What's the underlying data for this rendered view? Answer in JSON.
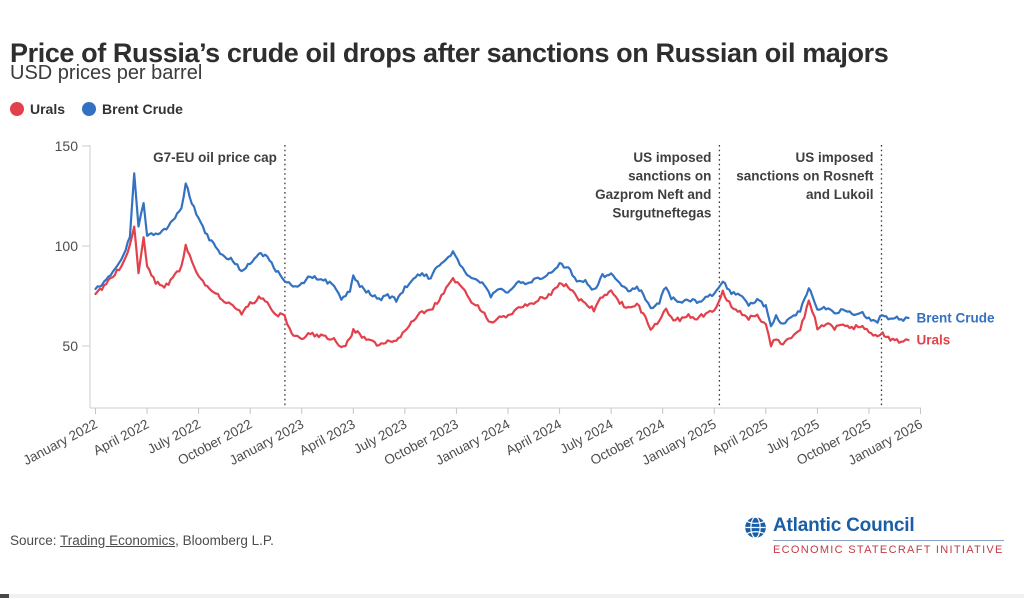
{
  "header": {
    "title": "Price of Russia’s crude oil drops after sanctions on Russian oil majors",
    "subtitle": "USD prices per barrel"
  },
  "legend": {
    "items": [
      {
        "label": "Urals",
        "color": "#e2414c"
      },
      {
        "label": "Brent Crude",
        "color": "#3372c2"
      }
    ]
  },
  "source": {
    "prefix": "Source: ",
    "link": "Trading Economics",
    "suffix": ", Bloomberg L.P."
  },
  "logo": {
    "org": "Atlantic Council",
    "program": "ECONOMIC STATECRAFT INITIATIVE",
    "org_color": "#1b5ea6",
    "program_color": "#c23b43"
  },
  "chart_data": {
    "type": "line",
    "title": "Price of Russia’s crude oil drops after sanctions on Russian oil majors",
    "ylabel": "USD prices per barrel",
    "grid": false,
    "legend_position": "top-left",
    "x_axis": {
      "unit": "months since January 2022",
      "tick_t": [
        0,
        3,
        6,
        9,
        12,
        15,
        18,
        21,
        24,
        27,
        30,
        33,
        36,
        39,
        42,
        45,
        48
      ],
      "tick_labels": [
        "January 2022",
        "April 2022",
        "July 2022",
        "October 2022",
        "January 2023",
        "April 2023",
        "July 2023",
        "October 2023",
        "January 2024",
        "April 2024",
        "July 2024",
        "October 2024",
        "January 2025",
        "April 2025",
        "July 2025",
        "October 2025",
        "January 2026"
      ]
    },
    "y_axis": {
      "ticks": [
        50,
        100,
        150
      ],
      "range": [
        19,
        152
      ]
    },
    "annotations": [
      {
        "name": "g7-eu-oil-price-cap",
        "t": 11.02,
        "date_hint": "December 2022",
        "lines": [
          "G7-EU oil price cap"
        ]
      },
      {
        "name": "us-sanctions-gazprom-neft-surgutneftegas",
        "t": 36.3,
        "date_hint": "January 2025",
        "lines": [
          "US imposed",
          "sanctions on",
          "Gazprom Neft and",
          "Surgutneftegas"
        ]
      },
      {
        "name": "us-sanctions-rosneft-lukoil",
        "t": 45.73,
        "date_hint": "October 2025",
        "lines": [
          "US imposed",
          "sanctions on Rosneft",
          "and Lukoil"
        ]
      }
    ],
    "series": [
      {
        "name": "Urals",
        "end_label": "Urals",
        "color": "#e2414c",
        "points": [
          [
            0,
            76
          ],
          [
            0.5,
            80
          ],
          [
            1,
            85
          ],
          [
            1.5,
            90
          ],
          [
            2,
            100
          ],
          [
            2.25,
            110
          ],
          [
            2.5,
            86
          ],
          [
            2.8,
            104
          ],
          [
            3,
            90
          ],
          [
            3.5,
            82
          ],
          [
            4,
            79
          ],
          [
            4.5,
            84
          ],
          [
            5,
            89
          ],
          [
            5.25,
            100
          ],
          [
            5.6,
            93
          ],
          [
            6,
            85
          ],
          [
            6.5,
            80
          ],
          [
            7,
            77
          ],
          [
            7.5,
            72
          ],
          [
            8,
            70
          ],
          [
            8.5,
            66
          ],
          [
            9,
            71
          ],
          [
            9.5,
            74
          ],
          [
            10,
            72
          ],
          [
            10.5,
            66
          ],
          [
            11,
            65
          ],
          [
            11.3,
            58
          ],
          [
            11.5,
            55
          ],
          [
            12,
            54
          ],
          [
            12.5,
            56
          ],
          [
            13,
            55
          ],
          [
            13.5,
            54
          ],
          [
            14,
            53
          ],
          [
            14.3,
            49
          ],
          [
            14.8,
            53
          ],
          [
            15,
            58
          ],
          [
            15.5,
            55
          ],
          [
            16,
            53
          ],
          [
            16.5,
            50
          ],
          [
            17,
            53
          ],
          [
            17.5,
            52
          ],
          [
            18,
            58
          ],
          [
            18.5,
            63
          ],
          [
            19,
            67
          ],
          [
            19.5,
            68
          ],
          [
            20,
            73
          ],
          [
            20.8,
            84
          ],
          [
            21.2,
            80
          ],
          [
            21.5,
            77
          ],
          [
            22,
            71
          ],
          [
            22.5,
            68
          ],
          [
            23,
            61
          ],
          [
            23.5,
            64
          ],
          [
            24,
            65
          ],
          [
            24.5,
            69
          ],
          [
            25,
            70
          ],
          [
            25.5,
            72
          ],
          [
            26,
            74
          ],
          [
            26.5,
            76
          ],
          [
            27,
            81
          ],
          [
            27.5,
            80
          ],
          [
            28,
            74
          ],
          [
            28.5,
            72
          ],
          [
            29,
            68
          ],
          [
            29.5,
            75
          ],
          [
            30,
            78
          ],
          [
            30.5,
            72
          ],
          [
            31,
            69
          ],
          [
            31.5,
            71
          ],
          [
            32,
            64
          ],
          [
            32.3,
            59
          ],
          [
            32.8,
            62
          ],
          [
            33.2,
            69
          ],
          [
            33.5,
            64
          ],
          [
            34,
            63
          ],
          [
            34.5,
            65
          ],
          [
            35,
            64
          ],
          [
            35.5,
            66
          ],
          [
            36,
            68
          ],
          [
            36.5,
            77
          ],
          [
            37,
            70
          ],
          [
            37.5,
            67
          ],
          [
            38,
            64
          ],
          [
            38.5,
            65
          ],
          [
            39,
            61
          ],
          [
            39.3,
            50
          ],
          [
            39.6,
            54
          ],
          [
            40,
            51
          ],
          [
            40.5,
            54
          ],
          [
            41,
            58
          ],
          [
            41.5,
            72
          ],
          [
            41.7,
            68
          ],
          [
            42,
            59
          ],
          [
            42.5,
            61
          ],
          [
            43,
            59
          ],
          [
            43.5,
            61
          ],
          [
            44,
            59
          ],
          [
            44.5,
            60
          ],
          [
            45,
            57
          ],
          [
            45.5,
            54
          ],
          [
            45.8,
            57
          ],
          [
            46,
            54
          ],
          [
            46.5,
            53
          ],
          [
            47,
            52
          ],
          [
            47.3,
            53
          ]
        ]
      },
      {
        "name": "Brent Crude",
        "end_label": "Brent Crude",
        "color": "#3372c2",
        "points": [
          [
            0,
            78.5
          ],
          [
            0.5,
            82
          ],
          [
            1,
            87
          ],
          [
            1.5,
            93
          ],
          [
            2,
            104
          ],
          [
            2.25,
            137
          ],
          [
            2.5,
            109
          ],
          [
            2.8,
            121
          ],
          [
            3,
            106
          ],
          [
            3.5,
            106
          ],
          [
            4,
            108
          ],
          [
            4.5,
            113
          ],
          [
            5,
            119
          ],
          [
            5.25,
            131
          ],
          [
            5.6,
            122
          ],
          [
            6,
            113
          ],
          [
            6.5,
            105
          ],
          [
            7,
            100
          ],
          [
            7.5,
            94
          ],
          [
            8,
            93
          ],
          [
            8.5,
            87
          ],
          [
            9,
            92
          ],
          [
            9.5,
            96
          ],
          [
            10,
            95
          ],
          [
            10.5,
            88
          ],
          [
            11,
            82
          ],
          [
            11.5,
            80
          ],
          [
            12,
            81
          ],
          [
            12.5,
            85
          ],
          [
            13,
            84
          ],
          [
            13.5,
            82
          ],
          [
            14,
            79
          ],
          [
            14.3,
            73
          ],
          [
            14.8,
            78
          ],
          [
            15,
            85
          ],
          [
            15.5,
            79
          ],
          [
            16,
            76
          ],
          [
            16.5,
            73
          ],
          [
            17,
            75
          ],
          [
            17.5,
            73
          ],
          [
            18,
            79
          ],
          [
            18.5,
            84
          ],
          [
            19,
            86
          ],
          [
            19.5,
            84
          ],
          [
            20,
            91
          ],
          [
            20.8,
            97
          ],
          [
            21.2,
            91
          ],
          [
            21.5,
            87
          ],
          [
            22,
            83
          ],
          [
            22.5,
            81
          ],
          [
            23,
            75
          ],
          [
            23.5,
            79
          ],
          [
            24,
            77
          ],
          [
            24.5,
            82
          ],
          [
            25,
            81
          ],
          [
            25.5,
            83
          ],
          [
            26,
            84
          ],
          [
            26.5,
            87
          ],
          [
            27,
            91
          ],
          [
            27.5,
            89
          ],
          [
            28,
            83
          ],
          [
            28.5,
            82
          ],
          [
            29,
            78
          ],
          [
            29.5,
            85
          ],
          [
            30,
            86
          ],
          [
            30.5,
            81
          ],
          [
            31,
            78
          ],
          [
            31.5,
            80
          ],
          [
            32,
            74
          ],
          [
            32.3,
            69
          ],
          [
            32.8,
            72
          ],
          [
            33.2,
            80
          ],
          [
            33.5,
            74
          ],
          [
            34,
            72
          ],
          [
            34.5,
            73
          ],
          [
            35,
            72
          ],
          [
            35.5,
            74
          ],
          [
            36,
            76
          ],
          [
            36.5,
            82
          ],
          [
            37,
            77
          ],
          [
            37.5,
            75
          ],
          [
            38,
            71
          ],
          [
            38.5,
            73
          ],
          [
            39,
            70
          ],
          [
            39.3,
            60
          ],
          [
            39.6,
            65
          ],
          [
            40,
            61
          ],
          [
            40.5,
            64
          ],
          [
            41,
            68
          ],
          [
            41.5,
            79
          ],
          [
            41.7,
            76
          ],
          [
            42,
            68
          ],
          [
            42.5,
            69
          ],
          [
            43,
            67
          ],
          [
            43.5,
            68
          ],
          [
            44,
            66
          ],
          [
            44.5,
            67
          ],
          [
            45,
            64
          ],
          [
            45.5,
            62
          ],
          [
            45.8,
            66
          ],
          [
            46,
            64
          ],
          [
            46.5,
            64
          ],
          [
            47,
            63
          ],
          [
            47.3,
            64
          ]
        ]
      }
    ]
  }
}
